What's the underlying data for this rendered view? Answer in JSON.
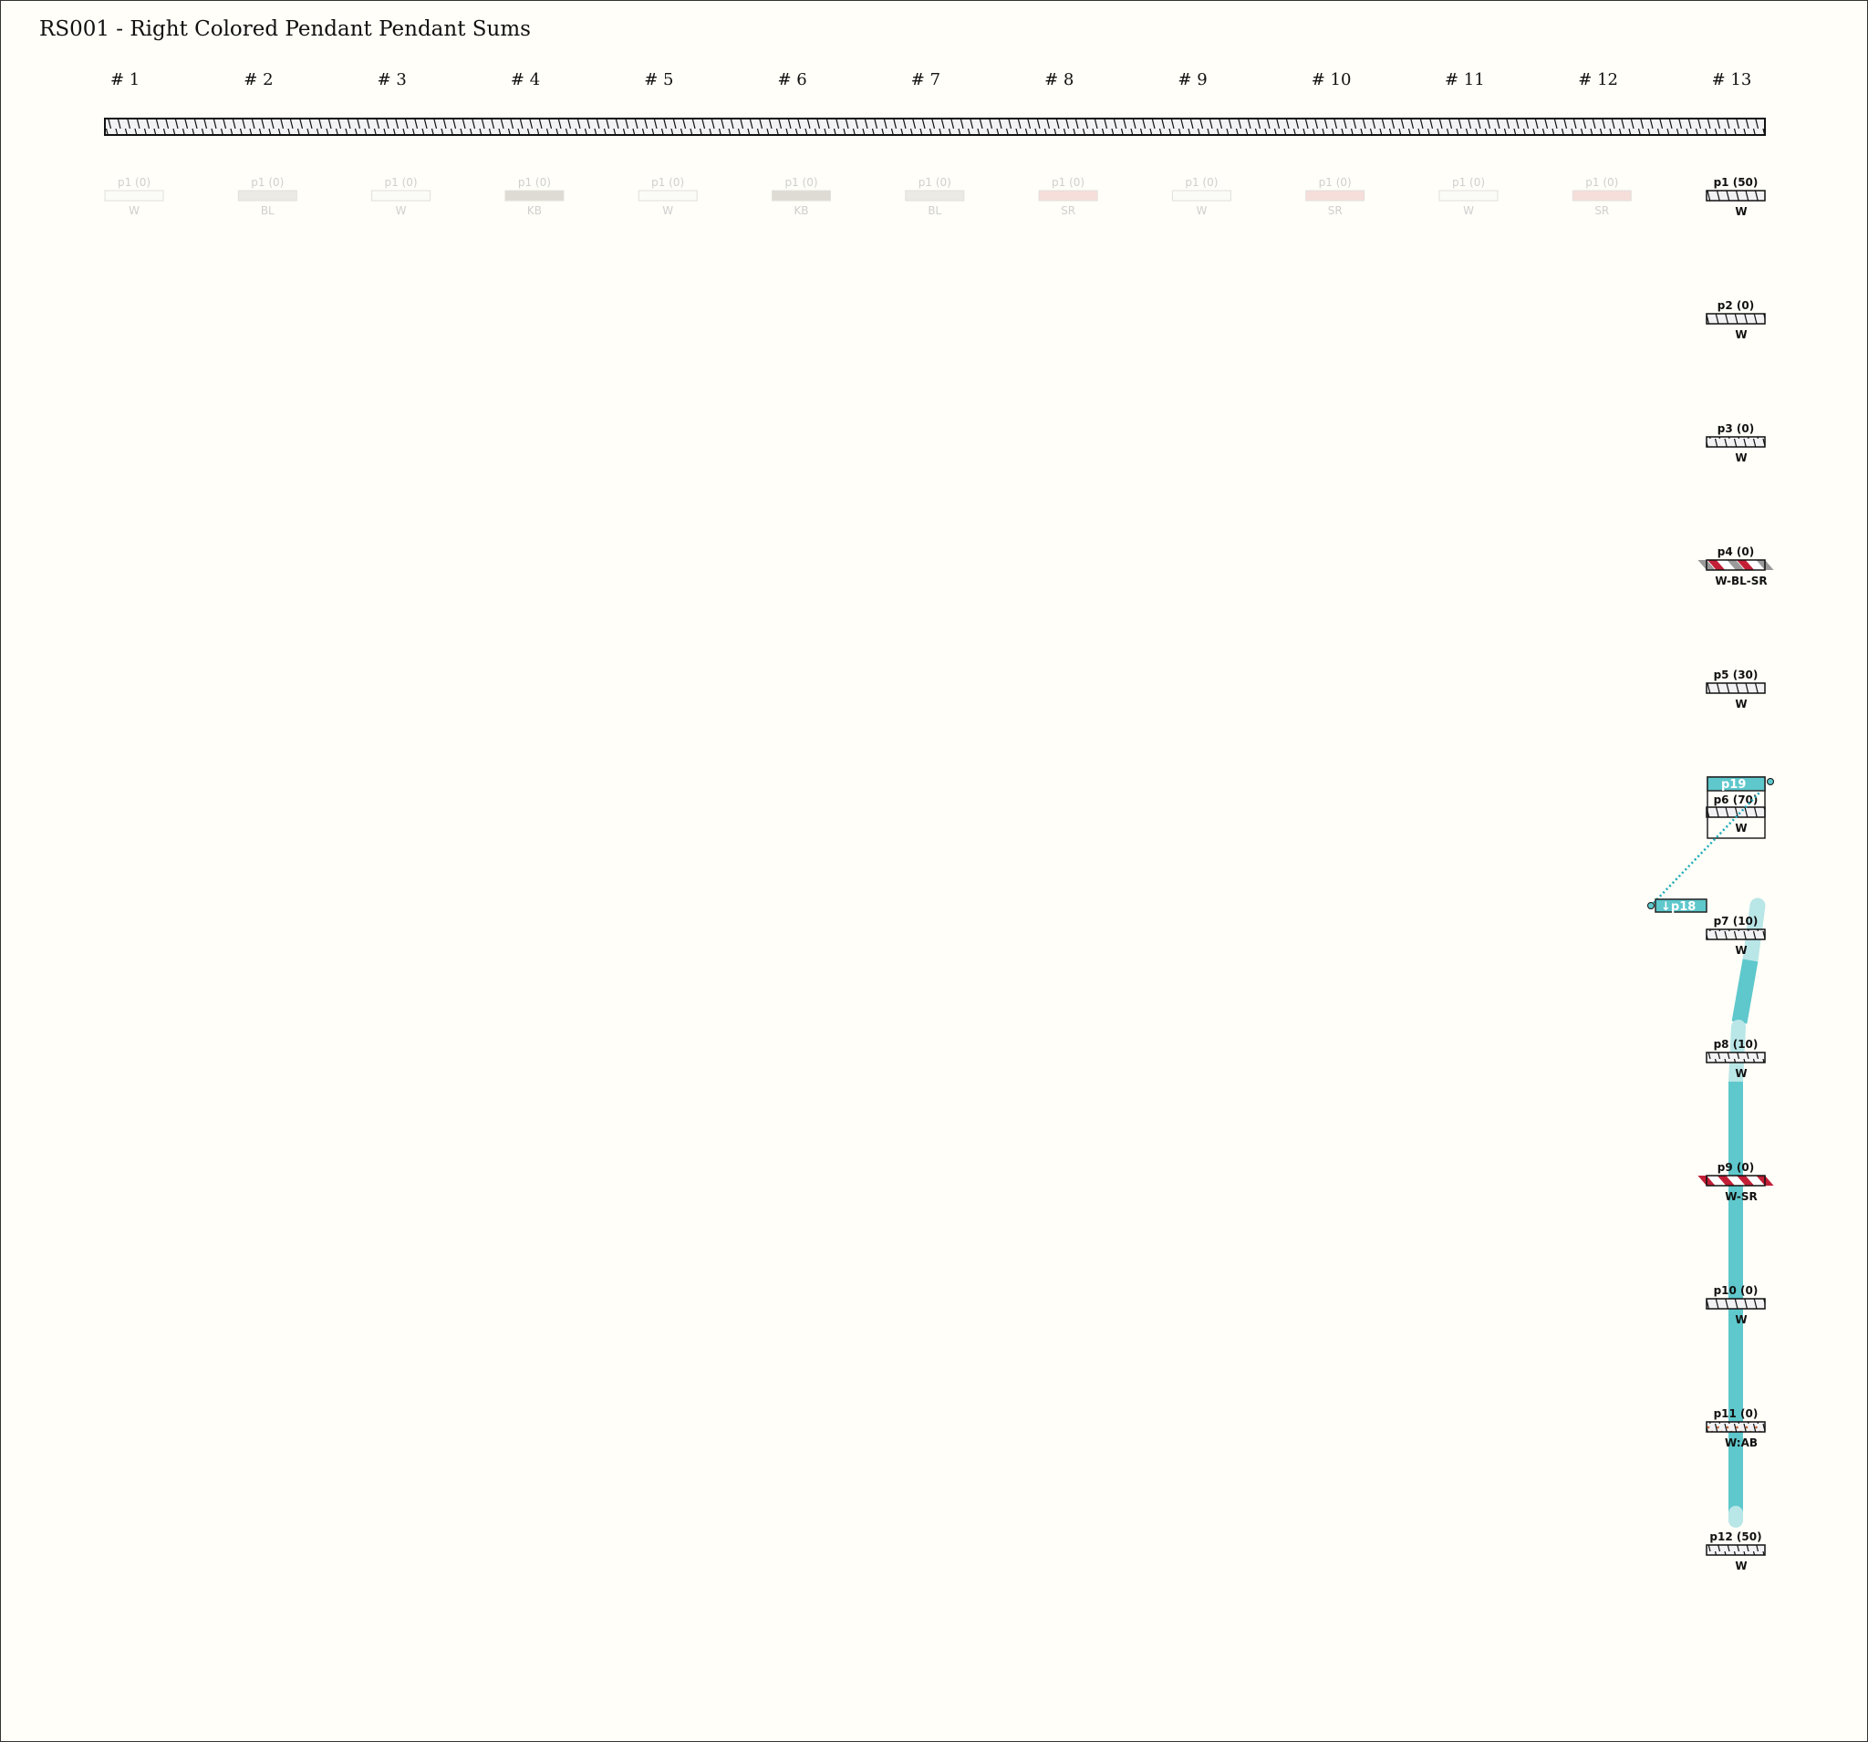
{
  "title": "RS001 - Right Colored Pendant Pendant Sums",
  "columns": [
    "# 1",
    "# 2",
    "# 3",
    "# 4",
    "# 5",
    "# 6",
    "# 7",
    "# 8",
    "# 9",
    "# 10",
    "# 11",
    "# 12",
    "# 13"
  ],
  "faded_pendants": [
    {
      "label": "p1 (0)",
      "color": "W"
    },
    {
      "label": "p1 (0)",
      "color": "BL"
    },
    {
      "label": "p1 (0)",
      "color": "W"
    },
    {
      "label": "p1 (0)",
      "color": "KB"
    },
    {
      "label": "p1 (0)",
      "color": "W"
    },
    {
      "label": "p1 (0)",
      "color": "KB"
    },
    {
      "label": "p1 (0)",
      "color": "BL"
    },
    {
      "label": "p1 (0)",
      "color": "SR"
    },
    {
      "label": "p1 (0)",
      "color": "W"
    },
    {
      "label": "p1 (0)",
      "color": "SR"
    },
    {
      "label": "p1 (0)",
      "color": "W"
    },
    {
      "label": "p1 (0)",
      "color": "SR"
    }
  ],
  "pendants": [
    {
      "label": "p1 (50)",
      "color": "W"
    },
    {
      "label": "p2 (0)",
      "color": "W"
    },
    {
      "label": "p3 (0)",
      "color": "W"
    },
    {
      "label": "p4 (0)",
      "color": "W-BL-SR"
    },
    {
      "label": "p5 (30)",
      "color": "W"
    },
    {
      "label": "p6 (70)",
      "color": "W"
    },
    {
      "label": "p7 (10)",
      "color": "W"
    },
    {
      "label": "p8 (10)",
      "color": "W"
    },
    {
      "label": "p9 (0)",
      "color": "W-SR"
    },
    {
      "label": "p10 (0)",
      "color": "W"
    },
    {
      "label": "p11 (0)",
      "color": "W:AB"
    },
    {
      "label": "p12 (50)",
      "color": "W"
    }
  ],
  "tags": {
    "p19": "p19",
    "p18": "↓p18"
  },
  "colors": {
    "background": "#fffef8",
    "highlight": "#5ec8cc",
    "highlight_light": "#b9e6e7",
    "link": "#19aab8",
    "W": "#f2f2f2",
    "BL": "#9a9a9a",
    "KB": "#5a4a3a",
    "SR": "#c21f36",
    "AB": "#c4622d",
    "faded_W": "#fbfbf8",
    "faded_BL": "#ebeae4",
    "faded_KB": "#dedbd4",
    "faded_SR": "#f6dedb"
  }
}
